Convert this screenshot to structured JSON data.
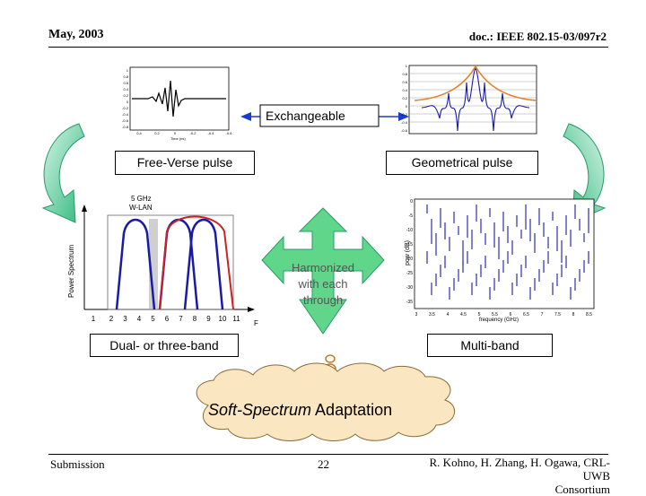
{
  "header": {
    "date": "May, 2003",
    "doc": "doc.: IEEE 802.15-03/097r2"
  },
  "labels": {
    "exchangeable": "Exchangeable",
    "free_verse": "Free-Verse pulse",
    "geometrical": "Geometrical pulse",
    "harmonized": "Harmonized with each through",
    "dual": "Dual- or three-band",
    "multi": "Multi-band",
    "soft_italic": "Soft-Spectrum",
    "soft_rest": " Adaptation"
  },
  "left_chart": {
    "annotation": "5 GHz W-LAN",
    "ylabel": "Power Spectrum",
    "xlabel": "F",
    "ticks": [
      "1",
      "2",
      "3",
      "4",
      "5",
      "6",
      "7",
      "8",
      "9",
      "10",
      "11"
    ]
  },
  "top_left_plot": {
    "yticks": [
      "1",
      "0.8",
      "0.6",
      "0.4",
      "0.2",
      "0",
      "-0.2",
      "-0.4",
      "-0.6",
      "-0.8"
    ],
    "xticks": [
      "0.4",
      "0.2",
      "0",
      "-0.2",
      "-0.4",
      "-0.6"
    ],
    "xlabel": "Time (ns)"
  },
  "top_right_plot": {
    "yticks": [
      "1",
      "0.8",
      "0.6",
      "0.4",
      "0.2",
      "0",
      "-0.2",
      "-0.4",
      "-0.6"
    ]
  },
  "right_chart": {
    "ylabel": "pow (dB)",
    "xlabel": "frequency (GHz)",
    "yticks": [
      "0",
      "-5",
      "-10",
      "-15",
      "-20",
      "-25",
      "-30",
      "-35"
    ],
    "xticks": [
      "3",
      "3.5",
      "4",
      "4.5",
      "5",
      "5.5",
      "6",
      "6.5",
      "7",
      "7.5",
      "8",
      "8.5"
    ]
  },
  "footer": {
    "left": "Submission",
    "page": "22",
    "right_line1": "R. Kohno, H. Zhang, H. Ogawa, CRL-UWB",
    "right_line2": "Consortium"
  },
  "colors": {
    "arrow_green": "#2db87a",
    "arrow_light": "#aee8d0",
    "cross_green": "#5fd68a",
    "cloud": "#fbe6c2",
    "blue_trace": "#1a1aa6",
    "red_trace": "#cc2222",
    "orange_env": "#e8822a"
  }
}
